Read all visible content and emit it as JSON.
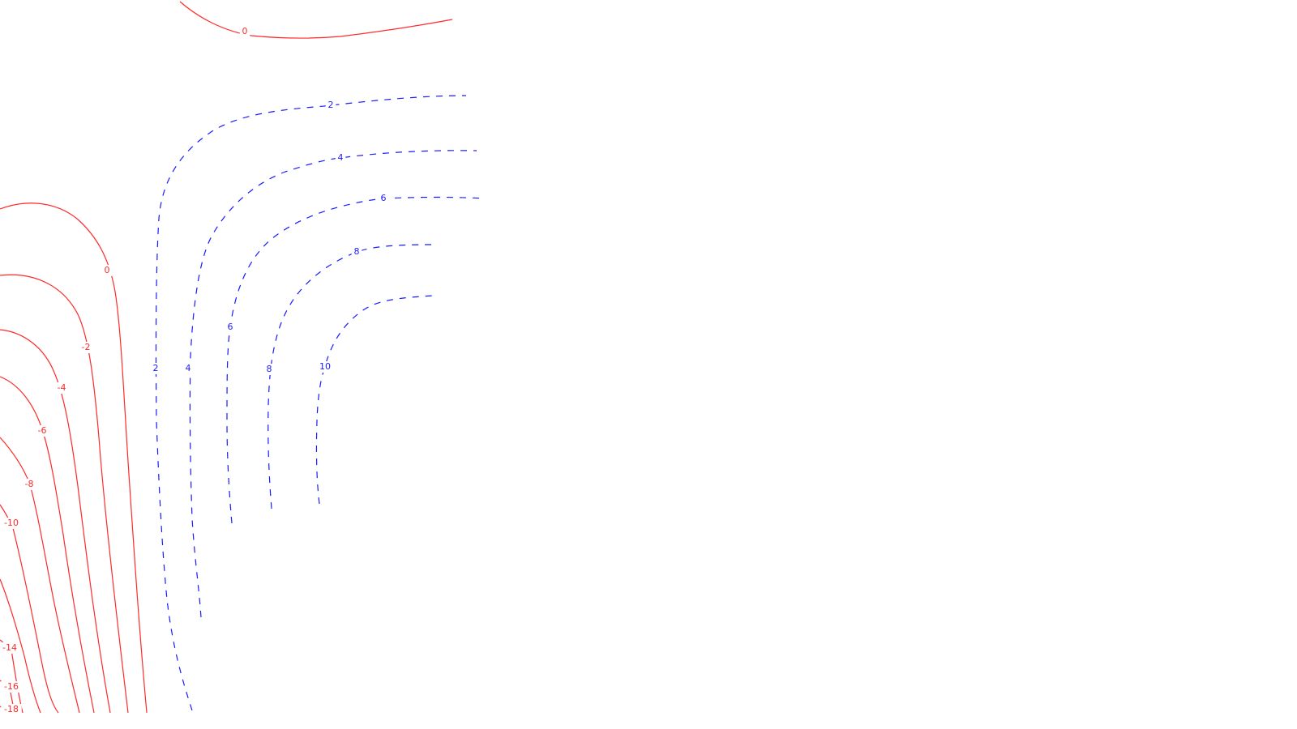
{
  "chart_data": {
    "type": "contour",
    "title": "",
    "xlabel": "",
    "ylabel": "",
    "colors": {
      "negative": "#ff2a2a",
      "positive": "#1a1aff",
      "background": "#ffffff"
    },
    "negative_levels": [
      {
        "level": 0,
        "label": "0",
        "style": "solid"
      },
      {
        "level": 0,
        "label": "0",
        "style": "solid"
      },
      {
        "level": -2,
        "label": "-2",
        "style": "solid"
      },
      {
        "level": -4,
        "label": "-4",
        "style": "solid"
      },
      {
        "level": -6,
        "label": "-6",
        "style": "solid"
      },
      {
        "level": -8,
        "label": "-8",
        "style": "solid"
      },
      {
        "level": -10,
        "label": "-10",
        "style": "solid"
      },
      {
        "level": -12,
        "label": "",
        "style": "solid"
      },
      {
        "level": -14,
        "label": "-14",
        "style": "solid"
      },
      {
        "level": -16,
        "label": "-16",
        "style": "solid"
      },
      {
        "level": -18,
        "label": "-18",
        "style": "solid"
      }
    ],
    "positive_levels": [
      {
        "level": 2,
        "labels": [
          "2",
          "2"
        ],
        "style": "dashed"
      },
      {
        "level": 4,
        "labels": [
          "4",
          "4"
        ],
        "style": "dashed"
      },
      {
        "level": 6,
        "labels": [
          "6",
          "6"
        ],
        "style": "dashed"
      },
      {
        "level": 8,
        "labels": [
          "8",
          "8"
        ],
        "style": "dashed"
      },
      {
        "level": 10,
        "labels": [
          "10"
        ],
        "style": "dashed"
      }
    ]
  }
}
